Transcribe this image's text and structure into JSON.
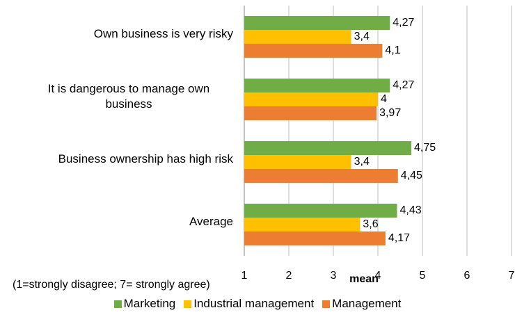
{
  "chart_data": {
    "type": "bar",
    "orientation": "horizontal",
    "categories": [
      "Own business is very risky",
      "It is dangerous to manage own business",
      "Business ownership has high risk",
      "Average"
    ],
    "series": [
      {
        "name": "Marketing",
        "color": "#70ad47",
        "values": [
          4.27,
          4.27,
          4.75,
          4.43
        ],
        "value_labels": [
          "4,27",
          "4,27",
          "4,75",
          "4,43"
        ]
      },
      {
        "name": "Industrial management",
        "color": "#ffc000",
        "values": [
          3.4,
          4,
          3.4,
          3.6
        ],
        "value_labels": [
          "3,4",
          "4",
          "3,4",
          "3,6"
        ]
      },
      {
        "name": "Management",
        "color": "#ed7d31",
        "values": [
          4.1,
          3.97,
          4.45,
          4.17
        ],
        "value_labels": [
          "4,1",
          "3,97",
          "4,45",
          "4,17"
        ]
      }
    ],
    "xlabel": "mean",
    "annotation": "(1=strongly disagree; 7= strongly agree)",
    "xlim": [
      1,
      7
    ],
    "xticks": [
      1,
      2,
      3,
      4,
      5,
      6,
      7
    ],
    "grid": true,
    "legend": "bottom"
  }
}
